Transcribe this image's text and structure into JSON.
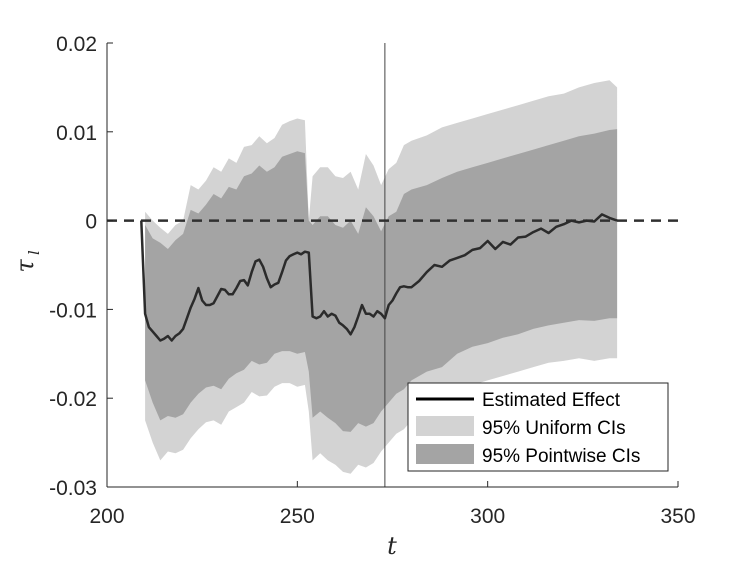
{
  "chart_data": {
    "type": "area",
    "xlabel": "t",
    "ylabel": "τ",
    "ylabel_sub": "l",
    "xlim": [
      200,
      350
    ],
    "ylim": [
      -0.03,
      0.02
    ],
    "x_ticks": [
      200,
      250,
      300,
      350
    ],
    "x_tick_labels": [
      "200",
      "250",
      "300",
      "350"
    ],
    "y_ticks": [
      0.02,
      0.01,
      0,
      -0.01,
      -0.02,
      -0.03
    ],
    "y_tick_labels": [
      "0.02",
      "0.01",
      "0",
      "-0.01",
      "-0.02",
      "-0.03"
    ],
    "vertical_line_x": 273,
    "zero_line": 0,
    "grid": false,
    "legend_position": "bottom-right",
    "colors": {
      "uniform": "#d3d3d3",
      "pointwise": "#a4a4a4",
      "effect": "#2b2b2b",
      "axis": "#262626"
    },
    "series": [
      {
        "name": "Estimated Effect",
        "kind": "line",
        "x": [
          209,
          210,
          211,
          212,
          213,
          214,
          215,
          216,
          217,
          218,
          219,
          220,
          221,
          222,
          223,
          224,
          225,
          226,
          227,
          228,
          229,
          230,
          231,
          232,
          233,
          234,
          235,
          236,
          237,
          238,
          239,
          240,
          241,
          242,
          243,
          244,
          245,
          246,
          247,
          248,
          249,
          250,
          251,
          252,
          253,
          254,
          255,
          256,
          257,
          258,
          259,
          260,
          261,
          262,
          263,
          264,
          265,
          266,
          267,
          268,
          269,
          270,
          271,
          272,
          273,
          274,
          275,
          276,
          277,
          278,
          279,
          280,
          282,
          284,
          286,
          288,
          290,
          292,
          294,
          296,
          298,
          300,
          302,
          304,
          306,
          308,
          310,
          312,
          314,
          316,
          318,
          320,
          322,
          324,
          326,
          328,
          330,
          332,
          334
        ],
        "y": [
          0,
          -0.0105,
          -0.012,
          -0.0125,
          -0.013,
          -0.0135,
          -0.0133,
          -0.013,
          -0.0135,
          -0.013,
          -0.0127,
          -0.0122,
          -0.011,
          -0.0098,
          -0.0088,
          -0.0076,
          -0.009,
          -0.0095,
          -0.0095,
          -0.0093,
          -0.0085,
          -0.0077,
          -0.0078,
          -0.0083,
          -0.0083,
          -0.0076,
          -0.0068,
          -0.0067,
          -0.0073,
          -0.0058,
          -0.0046,
          -0.0044,
          -0.0052,
          -0.0065,
          -0.0075,
          -0.0072,
          -0.007,
          -0.0058,
          -0.0045,
          -0.004,
          -0.0038,
          -0.0036,
          -0.0038,
          -0.0035,
          -0.0036,
          -0.0108,
          -0.011,
          -0.0108,
          -0.0102,
          -0.0108,
          -0.0105,
          -0.0107,
          -0.0115,
          -0.0118,
          -0.0122,
          -0.0128,
          -0.012,
          -0.0108,
          -0.0095,
          -0.0105,
          -0.0105,
          -0.0108,
          -0.0102,
          -0.0105,
          -0.011,
          -0.0095,
          -0.009,
          -0.0082,
          -0.0075,
          -0.0074,
          -0.0075,
          -0.0075,
          -0.0068,
          -0.0058,
          -0.005,
          -0.0052,
          -0.0045,
          -0.0042,
          -0.0039,
          -0.0033,
          -0.0031,
          -0.0023,
          -0.0032,
          -0.0024,
          -0.0027,
          -0.0019,
          -0.0018,
          -0.0013,
          -0.0009,
          -0.0014,
          -0.0007,
          -0.0004,
          0.0,
          -0.0002,
          0.0,
          -0.0001,
          0.0007,
          0.0003,
          0.0
        ]
      },
      {
        "name": "95% Uniform CIs",
        "kind": "band",
        "x": [
          210,
          212,
          214,
          216,
          218,
          220,
          222,
          224,
          226,
          228,
          230,
          232,
          234,
          236,
          238,
          240,
          242,
          244,
          246,
          248,
          250,
          252,
          253,
          254,
          256,
          258,
          260,
          262,
          264,
          266,
          268,
          270,
          272,
          274,
          276,
          278,
          280,
          284,
          288,
          292,
          296,
          300,
          304,
          308,
          312,
          316,
          320,
          324,
          328,
          332,
          334
        ],
        "upper": [
          0.001,
          0.0,
          -0.0008,
          -0.0015,
          -0.0005,
          0.0,
          0.004,
          0.0035,
          0.0045,
          0.006,
          0.0055,
          0.007,
          0.0065,
          0.0083,
          0.0085,
          0.0095,
          0.0087,
          0.0093,
          0.0108,
          0.0112,
          0.0115,
          0.0113,
          0.0,
          0.005,
          0.006,
          0.006,
          0.005,
          0.0048,
          0.0055,
          0.0035,
          0.0075,
          0.0062,
          0.004,
          0.0058,
          0.0065,
          0.0085,
          0.009,
          0.0096,
          0.0105,
          0.011,
          0.0115,
          0.012,
          0.0125,
          0.013,
          0.0135,
          0.014,
          0.0143,
          0.015,
          0.0155,
          0.0158,
          0.015
        ],
        "lower": [
          -0.0225,
          -0.025,
          -0.027,
          -0.026,
          -0.0262,
          -0.0258,
          -0.0245,
          -0.0235,
          -0.0227,
          -0.0225,
          -0.023,
          -0.0215,
          -0.021,
          -0.0205,
          -0.0193,
          -0.0198,
          -0.0197,
          -0.0187,
          -0.0183,
          -0.0183,
          -0.0187,
          -0.0185,
          -0.0215,
          -0.027,
          -0.0262,
          -0.027,
          -0.0275,
          -0.0283,
          -0.0285,
          -0.0275,
          -0.0278,
          -0.0273,
          -0.026,
          -0.025,
          -0.024,
          -0.0235,
          -0.0225,
          -0.0215,
          -0.021,
          -0.0195,
          -0.0185,
          -0.018,
          -0.0175,
          -0.017,
          -0.0165,
          -0.016,
          -0.0158,
          -0.0155,
          -0.0158,
          -0.0155,
          -0.0155
        ]
      },
      {
        "name": "95% Pointwise CIs",
        "kind": "band",
        "x": [
          210,
          212,
          214,
          216,
          218,
          220,
          222,
          224,
          226,
          228,
          230,
          232,
          234,
          236,
          238,
          240,
          242,
          244,
          246,
          248,
          250,
          252,
          253,
          254,
          256,
          258,
          260,
          262,
          264,
          266,
          268,
          270,
          272,
          274,
          276,
          278,
          280,
          284,
          288,
          292,
          296,
          300,
          304,
          308,
          312,
          316,
          320,
          324,
          328,
          332,
          334
        ],
        "upper": [
          -0.0005,
          -0.002,
          -0.0025,
          -0.0032,
          -0.0022,
          -0.0015,
          0.0012,
          0.0008,
          0.0018,
          0.003,
          0.0025,
          0.0038,
          0.0035,
          0.005,
          0.0053,
          0.0062,
          0.0055,
          0.006,
          0.0072,
          0.0075,
          0.0078,
          0.0076,
          0.0,
          -0.0005,
          0.0005,
          0.0005,
          -0.0005,
          -0.0008,
          0.0,
          -0.0015,
          0.0015,
          0.0005,
          -0.0012,
          0.0005,
          0.001,
          0.003,
          0.0035,
          0.004,
          0.0048,
          0.0055,
          0.006,
          0.0065,
          0.007,
          0.0075,
          0.008,
          0.0085,
          0.009,
          0.0095,
          0.0098,
          0.0102,
          0.0103
        ],
        "lower": [
          -0.018,
          -0.0205,
          -0.0225,
          -0.022,
          -0.0222,
          -0.0218,
          -0.0205,
          -0.0195,
          -0.0188,
          -0.0186,
          -0.019,
          -0.0178,
          -0.0172,
          -0.0168,
          -0.0158,
          -0.0162,
          -0.016,
          -0.015,
          -0.0147,
          -0.0147,
          -0.015,
          -0.0148,
          -0.017,
          -0.0222,
          -0.0215,
          -0.0222,
          -0.0228,
          -0.0237,
          -0.0238,
          -0.0228,
          -0.0232,
          -0.0228,
          -0.0215,
          -0.0205,
          -0.0195,
          -0.019,
          -0.018,
          -0.017,
          -0.0165,
          -0.015,
          -0.0142,
          -0.0138,
          -0.0132,
          -0.0128,
          -0.0122,
          -0.0118,
          -0.0115,
          -0.0112,
          -0.0113,
          -0.011,
          -0.011
        ]
      }
    ]
  }
}
